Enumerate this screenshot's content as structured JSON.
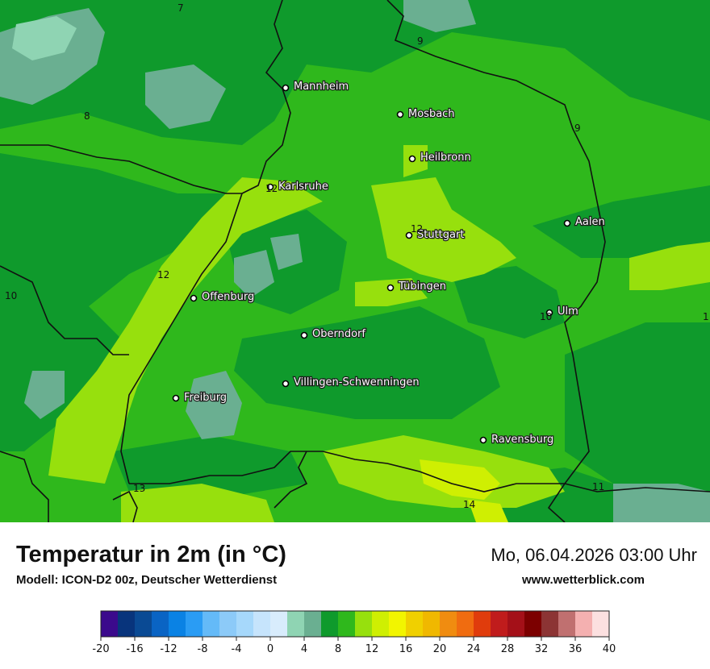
{
  "map": {
    "colors": {
      "t0_4": "#6aaf91",
      "t4_8": "#8fd4b3",
      "t8_10": "#0f9a2c",
      "t10_12": "#2fb81c",
      "t12_14": "#97e00d",
      "t14_16": "#cfef02",
      "border": "#111111"
    },
    "cities": [
      {
        "name": "Mannheim"
      },
      {
        "name": "Mosbach"
      },
      {
        "name": "Heilbronn"
      },
      {
        "name": "Karlsruhe"
      },
      {
        "name": "Aalen"
      },
      {
        "name": "Stuttgart"
      },
      {
        "name": "Tübingen"
      },
      {
        "name": "Offenburg"
      },
      {
        "name": "Ulm"
      },
      {
        "name": "Oberndorf"
      },
      {
        "name": "Villingen-Schwenningen"
      },
      {
        "name": "Freiburg"
      },
      {
        "name": "Ravensburg"
      }
    ],
    "isoline_labels": [
      "7",
      "9",
      "8",
      "9",
      "12",
      "12",
      "10",
      "12",
      "10",
      "1",
      "13",
      "14",
      "11"
    ]
  },
  "title": "Temperatur in 2m (in °C)",
  "subtitle": "Modell: ICON-D2 00z, Deutscher Wetterdienst",
  "datetime": "Mo, 06.04.2026 03:00 Uhr",
  "site": "www.wetterblick.com",
  "legend": {
    "ticks": [
      "-20",
      "-16",
      "-12",
      "-8",
      "-4",
      "0",
      "4",
      "8",
      "12",
      "16",
      "20",
      "24",
      "28",
      "32",
      "36",
      "40"
    ],
    "colors": [
      "#3b0a8c",
      "#08347c",
      "#0a4a94",
      "#0a64c4",
      "#0a82e4",
      "#2a9cf4",
      "#64baf8",
      "#8ccaf8",
      "#a6d8fb",
      "#c6e4fc",
      "#d8ecfc",
      "#8fd4b3",
      "#6aaf91",
      "#0f9a2c",
      "#2fb81c",
      "#97e00d",
      "#cfef02",
      "#f2f500",
      "#f0d000",
      "#f0b800",
      "#f08c10",
      "#f06c10",
      "#e03c0c",
      "#c01c1c",
      "#a41018",
      "#7c0000",
      "#8c3434",
      "#c07070",
      "#f4b0b0",
      "#fce0e0"
    ]
  }
}
